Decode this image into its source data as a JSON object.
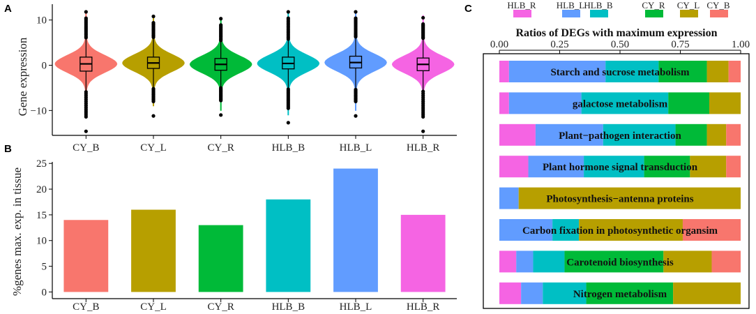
{
  "colors": {
    "CY_B": "#F8766D",
    "CY_L": "#B79F00",
    "CY_R": "#00BA38",
    "HLB_B": "#00BFC4",
    "HLB_L": "#619CFF",
    "HLB_R": "#F564E3"
  },
  "chart_data": [
    {
      "panel": "A",
      "type": "violin",
      "ylabel": "Gene expression",
      "xlabel": "",
      "ylim": [
        -15.5,
        13.5
      ],
      "yticks": [
        -10,
        0,
        10
      ],
      "ytick_labels": [
        "−10",
        "0",
        "10"
      ],
      "categories": [
        "CY_B",
        "CY_L",
        "CY_R",
        "HLB_B",
        "HLB_L",
        "HLB_R"
      ],
      "series": [
        {
          "name": "CY_B",
          "median": 0.3,
          "q1": -1.3,
          "q3": 1.8,
          "whisker_low": -5.9,
          "whisker_high": 6.1,
          "outlier_low": -14.6,
          "outlier_high": 11.8,
          "violin_min": -10,
          "violin_max": 12
        },
        {
          "name": "CY_L",
          "median": 0.5,
          "q1": -0.7,
          "q3": 1.8,
          "whisker_low": -5.2,
          "whisker_high": 6.2,
          "outlier_low": -11.2,
          "outlier_high": 10.8,
          "violin_min": -9,
          "violin_max": 11
        },
        {
          "name": "CY_R",
          "median": 0.2,
          "q1": -1.1,
          "q3": 1.5,
          "whisker_low": -5.0,
          "whisker_high": 5.5,
          "outlier_low": -11.0,
          "outlier_high": 10.3,
          "violin_min": -10,
          "violin_max": 10.5
        },
        {
          "name": "HLB_B",
          "median": 0.4,
          "q1": -0.8,
          "q3": 1.8,
          "whisker_low": -5.3,
          "whisker_high": 5.8,
          "outlier_low": -12.7,
          "outlier_high": 11.8,
          "violin_min": -11,
          "violin_max": 12
        },
        {
          "name": "HLB_L",
          "median": 0.6,
          "q1": -0.6,
          "q3": 2.0,
          "whisker_low": -5.4,
          "whisker_high": 6.3,
          "outlier_low": -11.2,
          "outlier_high": 11.8,
          "violin_min": -10,
          "violin_max": 12
        },
        {
          "name": "HLB_R",
          "median": 0.2,
          "q1": -1.2,
          "q3": 1.6,
          "whisker_low": -5.8,
          "whisker_high": 6.0,
          "outlier_low": -14.6,
          "outlier_high": 10.5,
          "violin_min": -10,
          "violin_max": 11
        }
      ]
    },
    {
      "panel": "B",
      "type": "bar",
      "ylabel": "%genes max. exp. in tissue",
      "xlabel": "",
      "ylim": [
        -1.3,
        25.3
      ],
      "yticks": [
        0,
        5,
        10,
        15,
        20,
        25
      ],
      "categories": [
        "CY_B",
        "CY_L",
        "CY_R",
        "HLB_B",
        "HLB_L",
        "HLB_R"
      ],
      "values": [
        14,
        16,
        13,
        18,
        24,
        15
      ]
    },
    {
      "panel": "C",
      "type": "stacked_bar_horizontal",
      "title": "Ratios of DEGs with maximum expression",
      "xlim": [
        0,
        1
      ],
      "xticks": [
        0,
        0.25,
        0.5,
        0.75,
        1
      ],
      "xtick_labels": [
        "0.00",
        "0.25",
        "0.50",
        "0.75",
        "1.00"
      ],
      "legend": [
        "HLB_R",
        "HLB_L",
        "HLB_B",
        "CY_R",
        "CY_L",
        "CY_B"
      ],
      "segment_order": [
        "HLB_R",
        "HLB_L",
        "HLB_B",
        "CY_R",
        "CY_L",
        "CY_B"
      ],
      "rows": [
        {
          "name": "Starch and sucrose metabolism",
          "fractions": [
            0.04,
            0.4,
            0.22,
            0.2,
            0.09,
            0.05
          ]
        },
        {
          "name": "galactose metabolism",
          "fractions": [
            0.04,
            0.3,
            0.36,
            0.17,
            0.13,
            0.0
          ]
        },
        {
          "name": "Plant−pathogen interaction",
          "fractions": [
            0.15,
            0.28,
            0.3,
            0.13,
            0.08,
            0.06
          ]
        },
        {
          "name": "Plant hormone signal transduction",
          "fractions": [
            0.12,
            0.23,
            0.25,
            0.19,
            0.15,
            0.06
          ]
        },
        {
          "name": "Photosynthesis−antenna proteins",
          "fractions": [
            0.0,
            0.08,
            0.0,
            0.0,
            0.92,
            0.0
          ]
        },
        {
          "name": "Carbon fixation in photosynthetic organsim",
          "fractions": [
            0.0,
            0.22,
            0.11,
            0.0,
            0.43,
            0.24
          ]
        },
        {
          "name": "Carotenoid biosynthesis",
          "fractions": [
            0.07,
            0.07,
            0.13,
            0.41,
            0.2,
            0.12
          ]
        },
        {
          "name": "Nitrogen metabolism",
          "fractions": [
            0.09,
            0.09,
            0.18,
            0.36,
            0.28,
            0.0
          ]
        }
      ]
    }
  ]
}
